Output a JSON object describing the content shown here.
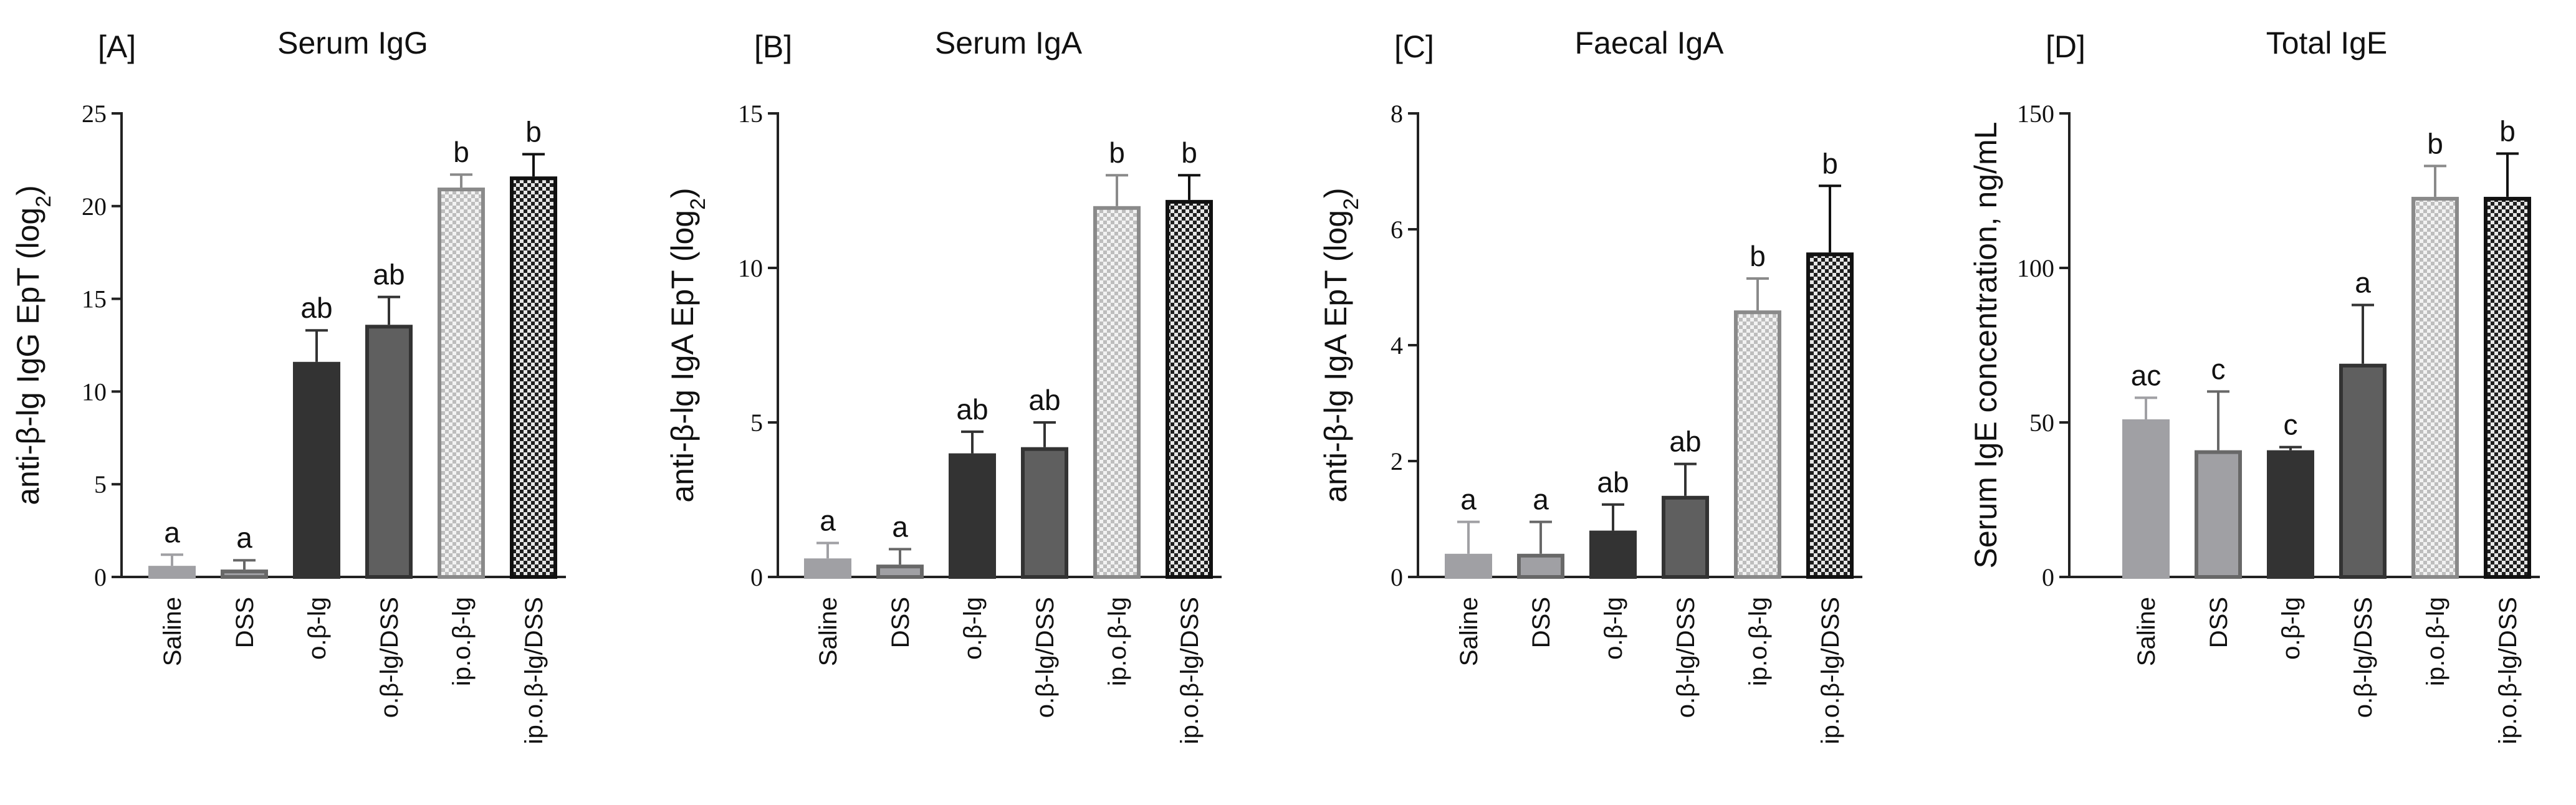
{
  "chart_data": [
    {
      "type": "bar",
      "panel": "[A]",
      "title": "Serum IgG",
      "ylabel": "anti-β-lg IgG EpT (log",
      "ylabel_sub": "2",
      "ylabel_suffix": ")",
      "ylim": [
        0,
        25
      ],
      "yticks": [
        0,
        5,
        10,
        15,
        20,
        25
      ],
      "categories": [
        "Saline",
        "DSS",
        "o.β-lg",
        "o.β-lg/DSS",
        "ip.o.β-lg",
        "ip.o.β-lg/DSS"
      ],
      "values": [
        0.6,
        0.4,
        11.6,
        13.6,
        21.0,
        21.6
      ],
      "errors": [
        0.6,
        0.5,
        1.7,
        1.5,
        0.7,
        1.2
      ],
      "letters": [
        "a",
        "a",
        "ab",
        "ab",
        "b",
        "b"
      ]
    },
    {
      "type": "bar",
      "panel": "[B]",
      "title": "Serum IgA",
      "ylabel": "anti-β-lg IgA EpT (log",
      "ylabel_sub": "2",
      "ylabel_suffix": ")",
      "ylim": [
        0,
        15
      ],
      "yticks": [
        0,
        5,
        10,
        15
      ],
      "categories": [
        "Saline",
        "DSS",
        "o.β-lg",
        "o.β-lg/DSS",
        "ip.o.β-lg",
        "ip.o.β-lg/DSS"
      ],
      "values": [
        0.6,
        0.4,
        4.0,
        4.2,
        12.0,
        12.2
      ],
      "errors": [
        0.5,
        0.5,
        0.7,
        0.8,
        1.0,
        0.8
      ],
      "letters": [
        "a",
        "a",
        "ab",
        "ab",
        "b",
        "b"
      ]
    },
    {
      "type": "bar",
      "panel": "[C]",
      "title": "Faecal IgA",
      "ylabel": "anti-β-lg IgA EpT (log",
      "ylabel_sub": "2",
      "ylabel_suffix": ")",
      "ylim": [
        0,
        8
      ],
      "yticks": [
        0,
        2,
        4,
        6,
        8
      ],
      "categories": [
        "Saline",
        "DSS",
        "o.β-lg",
        "o.β-lg/DSS",
        "ip.o.β-lg",
        "ip.o.β-lg/DSS"
      ],
      "values": [
        0.4,
        0.4,
        0.8,
        1.4,
        4.6,
        5.6
      ],
      "errors": [
        0.55,
        0.55,
        0.45,
        0.55,
        0.55,
        1.15
      ],
      "letters": [
        "a",
        "a",
        "ab",
        "ab",
        "b",
        "b"
      ]
    },
    {
      "type": "bar",
      "panel": "[D]",
      "title": "Total IgE",
      "ylabel": "Serum IgE concentration, ng/mL",
      "ylabel_sub": "",
      "ylabel_suffix": "",
      "ylim": [
        0,
        150
      ],
      "yticks": [
        0,
        50,
        100,
        150
      ],
      "categories": [
        "Saline",
        "DSS",
        "o.β-lg",
        "o.β-lg/DSS",
        "ip.o.β-lg",
        "ip.o.β-lg/DSS"
      ],
      "values": [
        51,
        41,
        41,
        69,
        123,
        123
      ],
      "errors": [
        7,
        19,
        1,
        19,
        10,
        14
      ],
      "letters": [
        "ac",
        "c",
        "c",
        "a",
        "b",
        "b"
      ]
    }
  ],
  "bar_styles": [
    {
      "fill": "#a0a0a4",
      "stroke": "#a0a0a4",
      "pattern": "solid"
    },
    {
      "fill": "#a0a0a4",
      "stroke": "#686868",
      "pattern": "solid"
    },
    {
      "fill": "#333333",
      "stroke": "#333333",
      "pattern": "solid"
    },
    {
      "fill": "#5f5f5f",
      "stroke": "#333333",
      "pattern": "solid"
    },
    {
      "fill": "#dddddd",
      "stroke": "#8a8a8a",
      "pattern": "check-light"
    },
    {
      "fill": "#9a9a9a",
      "stroke": "#111111",
      "pattern": "check-dark"
    }
  ]
}
